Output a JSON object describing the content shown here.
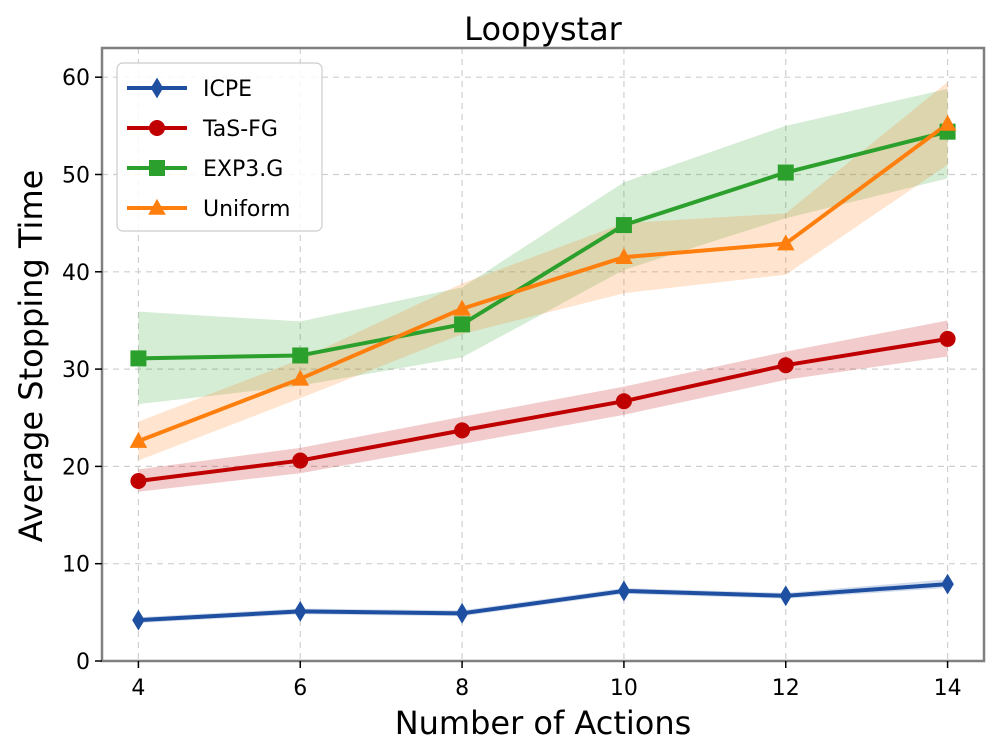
{
  "chart_data": {
    "type": "line",
    "title": "Loopystar",
    "xlabel": "Number of Actions",
    "ylabel": "Average Stopping Time",
    "x": [
      4,
      6,
      8,
      10,
      12,
      14
    ],
    "xlim": [
      3.55,
      14.45
    ],
    "ylim": [
      0,
      63
    ],
    "xticks": [
      4,
      6,
      8,
      10,
      12,
      14
    ],
    "yticks": [
      0,
      10,
      20,
      30,
      40,
      50,
      60
    ],
    "grid": true,
    "legend_position": "top-left",
    "series": [
      {
        "name": "ICPE",
        "color": "#1f4fa0",
        "marker": "diamond",
        "values": [
          4.2,
          5.1,
          4.9,
          7.2,
          6.7,
          7.9
        ],
        "lower": [
          3.9,
          4.8,
          4.6,
          6.9,
          6.4,
          7.5
        ],
        "upper": [
          4.5,
          5.4,
          5.2,
          7.5,
          7.0,
          8.4
        ]
      },
      {
        "name": "TaS-FG",
        "color": "#c00000",
        "marker": "circle",
        "values": [
          18.5,
          20.6,
          23.7,
          26.7,
          30.4,
          33.1
        ],
        "lower": [
          17.4,
          19.3,
          22.3,
          25.3,
          28.9,
          31.3
        ],
        "upper": [
          19.7,
          21.9,
          25.1,
          28.2,
          31.8,
          35.0
        ]
      },
      {
        "name": "EXP3.G",
        "color": "#2ca02c",
        "marker": "square",
        "values": [
          31.1,
          31.4,
          34.6,
          44.8,
          50.2,
          54.4
        ],
        "lower": [
          26.4,
          28.3,
          31.2,
          40.2,
          45.5,
          49.6
        ],
        "upper": [
          35.9,
          34.9,
          38.4,
          49.2,
          55.0,
          58.8
        ]
      },
      {
        "name": "Uniform",
        "color": "#ff7f0e",
        "marker": "triangle",
        "values": [
          22.6,
          29.0,
          36.2,
          41.5,
          42.9,
          55.2
        ],
        "lower": [
          20.6,
          27.0,
          33.6,
          37.8,
          39.7,
          51.0
        ],
        "upper": [
          24.6,
          31.0,
          38.8,
          45.0,
          46.0,
          59.5
        ]
      }
    ]
  }
}
